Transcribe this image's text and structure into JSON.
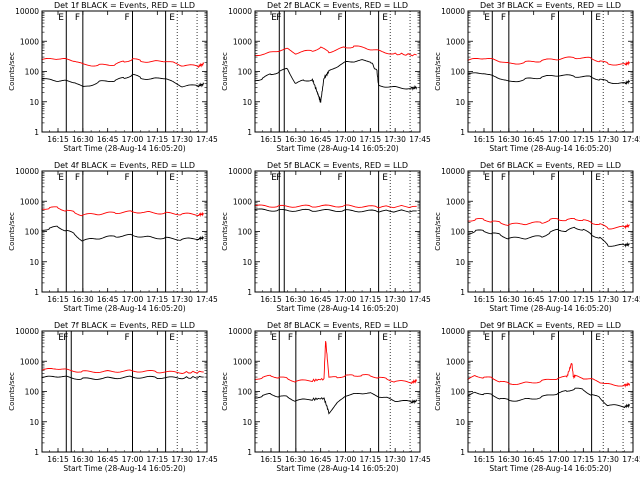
{
  "figure": {
    "xticks": [
      "16:15",
      "16:30",
      "16:45",
      "17:00",
      "17:15",
      "17:30",
      "17:45"
    ],
    "xlabel": "Start Time (28-Aug-14 16:05:20)",
    "ylabel": "Counts/sec",
    "yticks": [
      "1",
      "10",
      "100",
      "1000",
      "10000"
    ],
    "flags": [
      "E",
      "F",
      "F",
      "E"
    ],
    "series_colors": {
      "events": "#000000",
      "lld": "#ff0000"
    }
  },
  "chart_data": [
    {
      "type": "line",
      "title": "Det 1f BLACK = Events, RED = LLD",
      "xlim": [
        "16:05:20",
        "17:45"
      ],
      "ylim": [
        1,
        10000
      ],
      "yscale": "log",
      "solid_lines": [
        "16:20",
        "16:30",
        "17:00",
        "17:20"
      ],
      "dotted_lines": [
        "17:27",
        "17:39"
      ],
      "series": [
        {
          "name": "Events",
          "x": [
            "16:05",
            "16:15",
            "16:20",
            "16:25",
            "16:30",
            "16:40",
            "16:50",
            "16:55",
            "17:00",
            "17:05",
            "17:15",
            "17:20",
            "17:25",
            "17:30",
            "17:40",
            "17:43"
          ],
          "y": [
            55,
            50,
            48,
            45,
            30,
            45,
            52,
            60,
            80,
            60,
            58,
            62,
            42,
            33,
            34,
            38
          ]
        },
        {
          "name": "LLD",
          "x": [
            "16:05",
            "16:15",
            "16:20",
            "16:25",
            "16:30",
            "16:40",
            "16:50",
            "16:55",
            "17:00",
            "17:05",
            "17:15",
            "17:20",
            "17:25",
            "17:30",
            "17:40",
            "17:43"
          ],
          "y": [
            240,
            270,
            250,
            230,
            170,
            160,
            175,
            210,
            260,
            220,
            215,
            225,
            190,
            160,
            150,
            180
          ]
        }
      ]
    },
    {
      "type": "line",
      "title": "Det 2f BLACK = Events, RED = LLD",
      "xlim": [
        "16:05:20",
        "17:45"
      ],
      "ylim": [
        1,
        10000
      ],
      "yscale": "log",
      "solid_lines": [
        "16:20",
        "16:23",
        "17:00",
        "17:20"
      ],
      "dotted_lines": [
        "17:27",
        "17:39"
      ],
      "series": [
        {
          "name": "Events",
          "x": [
            "16:05",
            "16:10",
            "16:15",
            "16:20",
            "16:25",
            "16:30",
            "16:35",
            "16:40",
            "16:43",
            "16:45",
            "16:47",
            "16:50",
            "16:55",
            "17:00",
            "17:05",
            "17:10",
            "17:15",
            "17:19",
            "17:20",
            "17:30",
            "17:40",
            "17:43"
          ],
          "y": [
            50,
            60,
            80,
            100,
            120,
            40,
            50,
            55,
            20,
            10,
            60,
            100,
            150,
            200,
            220,
            230,
            220,
            100,
            35,
            30,
            28,
            30
          ]
        },
        {
          "name": "LLD",
          "x": [
            "16:05",
            "16:15",
            "16:20",
            "16:25",
            "16:30",
            "16:40",
            "16:45",
            "16:50",
            "17:00",
            "17:05",
            "17:15",
            "17:20",
            "17:30",
            "17:43"
          ],
          "y": [
            350,
            420,
            500,
            550,
            400,
            500,
            600,
            450,
            620,
            680,
            550,
            480,
            380,
            350
          ]
        }
      ]
    },
    {
      "type": "line",
      "title": "Det 3f BLACK = Events, RED = LLD",
      "xlim": [
        "16:05:20",
        "17:45"
      ],
      "ylim": [
        1,
        10000
      ],
      "yscale": "log",
      "solid_lines": [
        "16:20",
        "16:30",
        "17:00",
        "17:20"
      ],
      "dotted_lines": [
        "17:27",
        "17:39"
      ],
      "series": [
        {
          "name": "Events",
          "x": [
            "16:05",
            "16:15",
            "16:20",
            "16:25",
            "16:30",
            "16:40",
            "16:50",
            "17:00",
            "17:10",
            "17:20",
            "17:25",
            "17:30",
            "17:40",
            "17:43"
          ],
          "y": [
            80,
            90,
            70,
            60,
            45,
            55,
            65,
            75,
            70,
            65,
            55,
            45,
            40,
            48
          ]
        },
        {
          "name": "LLD",
          "x": [
            "16:05",
            "16:15",
            "16:20",
            "16:25",
            "16:30",
            "16:40",
            "16:50",
            "17:00",
            "17:10",
            "17:20",
            "17:25",
            "17:30",
            "17:40",
            "17:43"
          ],
          "y": [
            230,
            280,
            250,
            220,
            180,
            200,
            230,
            260,
            290,
            270,
            220,
            180,
            170,
            200
          ]
        }
      ]
    },
    {
      "type": "line",
      "title": "Det 4f BLACK = Events, RED = LLD",
      "xlim": [
        "16:05:20",
        "17:45"
      ],
      "ylim": [
        1,
        10000
      ],
      "yscale": "log",
      "solid_lines": [
        "16:20",
        "16:30",
        "17:00",
        "17:20"
      ],
      "dotted_lines": [
        "17:27",
        "17:39"
      ],
      "series": [
        {
          "name": "Events",
          "x": [
            "16:05",
            "16:10",
            "16:15",
            "16:20",
            "16:25",
            "16:30",
            "16:40",
            "16:50",
            "17:00",
            "17:10",
            "17:20",
            "17:30",
            "17:40",
            "17:43"
          ],
          "y": [
            110,
            130,
            140,
            110,
            80,
            50,
            60,
            70,
            75,
            65,
            60,
            55,
            58,
            62
          ]
        },
        {
          "name": "LLD",
          "x": [
            "16:05",
            "16:10",
            "16:15",
            "16:20",
            "16:25",
            "16:30",
            "16:40",
            "16:50",
            "17:00",
            "17:10",
            "17:20",
            "17:30",
            "17:40",
            "17:43"
          ],
          "y": [
            550,
            620,
            600,
            500,
            420,
            350,
            380,
            420,
            450,
            430,
            400,
            380,
            360,
            380
          ]
        }
      ]
    },
    {
      "type": "line",
      "title": "Det 5f BLACK = Events, RED = LLD",
      "xlim": [
        "16:05:20",
        "17:45"
      ],
      "ylim": [
        1,
        10000
      ],
      "yscale": "log",
      "solid_lines": [
        "16:20",
        "16:23",
        "17:00",
        "17:20"
      ],
      "dotted_lines": [
        "17:27",
        "17:39"
      ],
      "series": [
        {
          "name": "Events",
          "x": [
            "16:05",
            "16:20",
            "16:40",
            "17:00",
            "17:20",
            "17:43"
          ],
          "y": [
            520,
            500,
            500,
            490,
            470,
            480
          ]
        },
        {
          "name": "LLD",
          "x": [
            "16:05",
            "16:20",
            "16:40",
            "17:00",
            "17:20",
            "17:43"
          ],
          "y": [
            700,
            680,
            690,
            700,
            650,
            680
          ]
        }
      ]
    },
    {
      "type": "line",
      "title": "Det 6f BLACK = Events, RED = LLD",
      "xlim": [
        "16:05:20",
        "17:45"
      ],
      "ylim": [
        1,
        10000
      ],
      "yscale": "log",
      "solid_lines": [
        "16:20",
        "16:30",
        "17:00",
        "17:20"
      ],
      "dotted_lines": [
        "17:27",
        "17:39"
      ],
      "series": [
        {
          "name": "Events",
          "x": [
            "16:05",
            "16:10",
            "16:15",
            "16:20",
            "16:25",
            "16:30",
            "16:40",
            "16:50",
            "16:55",
            "17:00",
            "17:05",
            "17:10",
            "17:15",
            "17:20",
            "17:25",
            "17:30",
            "17:40",
            "17:43"
          ],
          "y": [
            80,
            110,
            100,
            90,
            75,
            60,
            60,
            70,
            90,
            120,
            100,
            140,
            110,
            80,
            60,
            35,
            35,
            38
          ]
        },
        {
          "name": "LLD",
          "x": [
            "16:05",
            "16:10",
            "16:15",
            "16:20",
            "16:25",
            "16:30",
            "16:40",
            "16:50",
            "16:55",
            "17:00",
            "17:05",
            "17:10",
            "17:15",
            "17:20",
            "17:25",
            "17:30",
            "17:40",
            "17:43"
          ],
          "y": [
            220,
            260,
            240,
            220,
            190,
            170,
            180,
            200,
            240,
            260,
            230,
            270,
            230,
            200,
            170,
            130,
            140,
            160
          ]
        }
      ]
    },
    {
      "type": "line",
      "title": "Det 7f BLACK = Events, RED = LLD",
      "xlim": [
        "16:05:20",
        "17:45"
      ],
      "ylim": [
        1,
        10000
      ],
      "yscale": "log",
      "solid_lines": [
        "16:20",
        "16:23",
        "17:00",
        "17:20"
      ],
      "dotted_lines": [
        "17:27",
        "17:39"
      ],
      "series": [
        {
          "name": "Events",
          "x": [
            "16:05",
            "16:15",
            "16:20",
            "16:30",
            "16:45",
            "17:00",
            "17:15",
            "17:30",
            "17:43"
          ],
          "y": [
            280,
            320,
            300,
            260,
            280,
            300,
            290,
            280,
            300
          ]
        },
        {
          "name": "LLD",
          "x": [
            "16:05",
            "16:15",
            "16:20",
            "16:30",
            "16:45",
            "17:00",
            "17:15",
            "17:30",
            "17:43"
          ],
          "y": [
            500,
            580,
            520,
            450,
            460,
            480,
            450,
            420,
            440
          ]
        }
      ]
    },
    {
      "type": "line",
      "title": "Det 8f BLACK = Events, RED = LLD",
      "xlim": [
        "16:05:20",
        "17:45"
      ],
      "ylim": [
        1,
        10000
      ],
      "yscale": "log",
      "solid_lines": [
        "16:20",
        "16:30",
        "17:00",
        "17:20"
      ],
      "dotted_lines": [
        "17:27",
        "17:39"
      ],
      "series": [
        {
          "name": "Events",
          "x": [
            "16:05",
            "16:10",
            "16:15",
            "16:20",
            "16:25",
            "16:30",
            "16:40",
            "16:47",
            "16:50",
            "16:55",
            "17:00",
            "17:05",
            "17:10",
            "17:15",
            "17:20",
            "17:25",
            "17:30",
            "17:40",
            "17:43"
          ],
          "y": [
            60,
            75,
            80,
            70,
            65,
            50,
            55,
            60,
            20,
            40,
            75,
            80,
            90,
            85,
            70,
            60,
            50,
            45,
            48
          ]
        },
        {
          "name": "LLD",
          "x": [
            "16:05",
            "16:10",
            "16:15",
            "16:20",
            "16:25",
            "16:30",
            "16:40",
            "16:47",
            "16:48",
            "16:50",
            "16:55",
            "17:00",
            "17:05",
            "17:10",
            "17:15",
            "17:20",
            "17:25",
            "17:30",
            "17:40",
            "17:43"
          ],
          "y": [
            250,
            300,
            320,
            300,
            260,
            220,
            230,
            260,
            5000,
            300,
            280,
            350,
            320,
            360,
            320,
            300,
            250,
            220,
            200,
            230
          ]
        }
      ]
    },
    {
      "type": "line",
      "title": "Det 9f BLACK = Events, RED = LLD",
      "xlim": [
        "16:05:20",
        "17:45"
      ],
      "ylim": [
        1,
        10000
      ],
      "yscale": "log",
      "solid_lines": [
        "16:20",
        "16:30",
        "17:00",
        "17:20"
      ],
      "dotted_lines": [
        "17:27",
        "17:39"
      ],
      "series": [
        {
          "name": "Events",
          "x": [
            "16:05",
            "16:10",
            "16:15",
            "16:20",
            "16:25",
            "16:30",
            "16:40",
            "16:50",
            "17:00",
            "17:05",
            "17:10",
            "17:15",
            "17:20",
            "17:25",
            "17:30",
            "17:40",
            "17:43"
          ],
          "y": [
            70,
            90,
            85,
            75,
            60,
            50,
            55,
            65,
            90,
            100,
            130,
            110,
            80,
            60,
            35,
            32,
            35
          ]
        },
        {
          "name": "LLD",
          "x": [
            "16:05",
            "16:10",
            "16:15",
            "16:20",
            "16:25",
            "16:30",
            "16:40",
            "16:50",
            "17:00",
            "17:05",
            "17:08",
            "17:09",
            "17:10",
            "17:15",
            "17:20",
            "17:25",
            "17:30",
            "17:40",
            "17:43"
          ],
          "y": [
            250,
            320,
            300,
            270,
            220,
            180,
            190,
            220,
            280,
            300,
            900,
            300,
            320,
            280,
            250,
            210,
            170,
            160,
            180
          ]
        }
      ]
    }
  ]
}
